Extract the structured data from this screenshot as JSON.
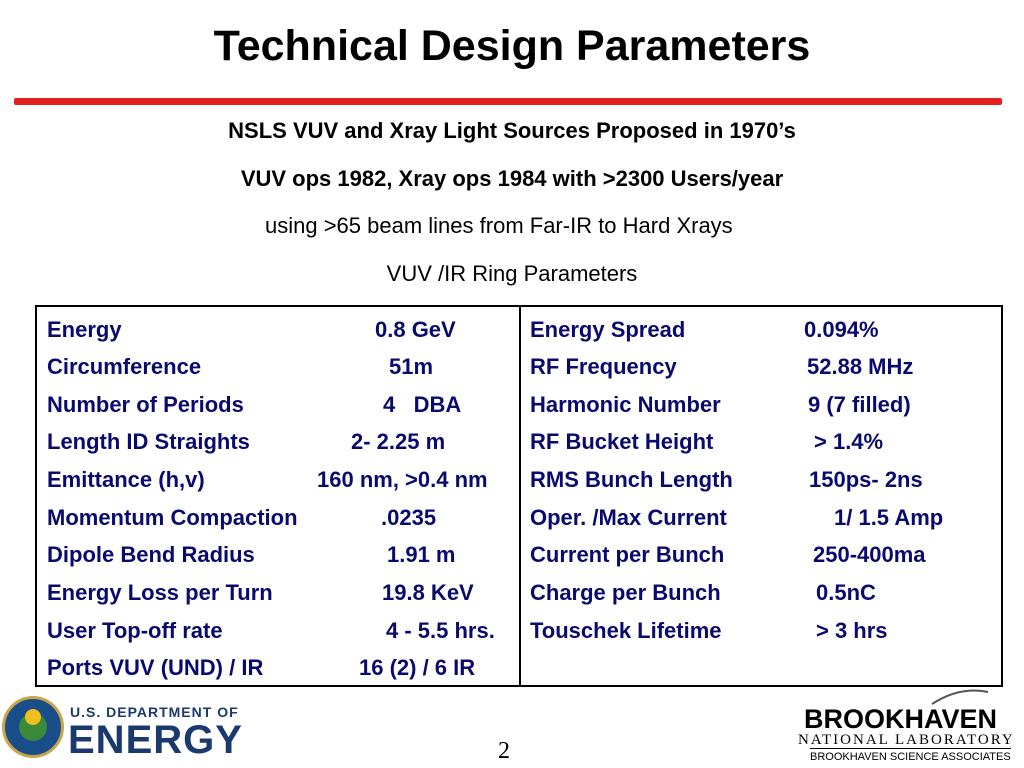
{
  "title": "Technical Design Parameters",
  "subtitles": [
    "NSLS VUV and Xray Light Sources Proposed in 1970’s",
    "VUV ops 1982, Xray ops 1984 with >2300 Users/year",
    "using >65 beam lines from Far-IR to Hard Xrays",
    "VUV /IR Ring Parameters"
  ],
  "left_params": [
    {
      "label": "Energy",
      "value": "0.8 GeV"
    },
    {
      "label": "Circumference",
      "value": "51m"
    },
    {
      "label": "Number of Periods",
      "value": "4   DBA"
    },
    {
      "label": "Length ID Straights",
      "value": "2- 2.25 m"
    },
    {
      "label": "Emittance (h,v)",
      "value": "160 nm, >0.4 nm"
    },
    {
      "label": "Momentum Compaction",
      "value": ".0235"
    },
    {
      "label": "Dipole Bend Radius",
      "value": "1.91 m"
    },
    {
      "label": "Energy Loss per Turn",
      "value": "19.8 KeV"
    },
    {
      "label": "User Top-off rate",
      "value": "4 - 5.5 hrs."
    },
    {
      "label": "Ports VUV (UND) / IR",
      "value": "16 (2) / 6 IR"
    }
  ],
  "right_params": [
    {
      "label": "Energy Spread",
      "value": "0.094%"
    },
    {
      "label": "RF Frequency",
      "value": "52.88 MHz"
    },
    {
      "label": "Harmonic Number",
      "value": "9 (7 filled)"
    },
    {
      "label": "RF Bucket Height",
      "value": "> 1.4%"
    },
    {
      "label": "RMS Bunch Length",
      "value": "150ps- 2ns"
    },
    {
      "label": "Oper. /Max Current",
      "value": "1/ 1.5 Amp"
    },
    {
      "label": "Current per Bunch",
      "value": "250-400ma"
    },
    {
      "label": "Charge per Bunch",
      "value": "0.5nC"
    },
    {
      "label": "Touschek Lifetime",
      "value": "> 3 hrs"
    }
  ],
  "footer": {
    "doe_top": "U.S. DEPARTMENT OF",
    "doe_main": "ENERGY",
    "page_number": "2",
    "bnl_name": "BROOKHAVEN",
    "bnl_lab": "NATIONAL LABORATORY",
    "bnl_assoc": "BROOKHAVEN SCIENCE ASSOCIATES"
  },
  "colors": {
    "rule": "#e3201c",
    "table_text": "#0a0a6e",
    "doe_blue": "#1a3a6e"
  }
}
